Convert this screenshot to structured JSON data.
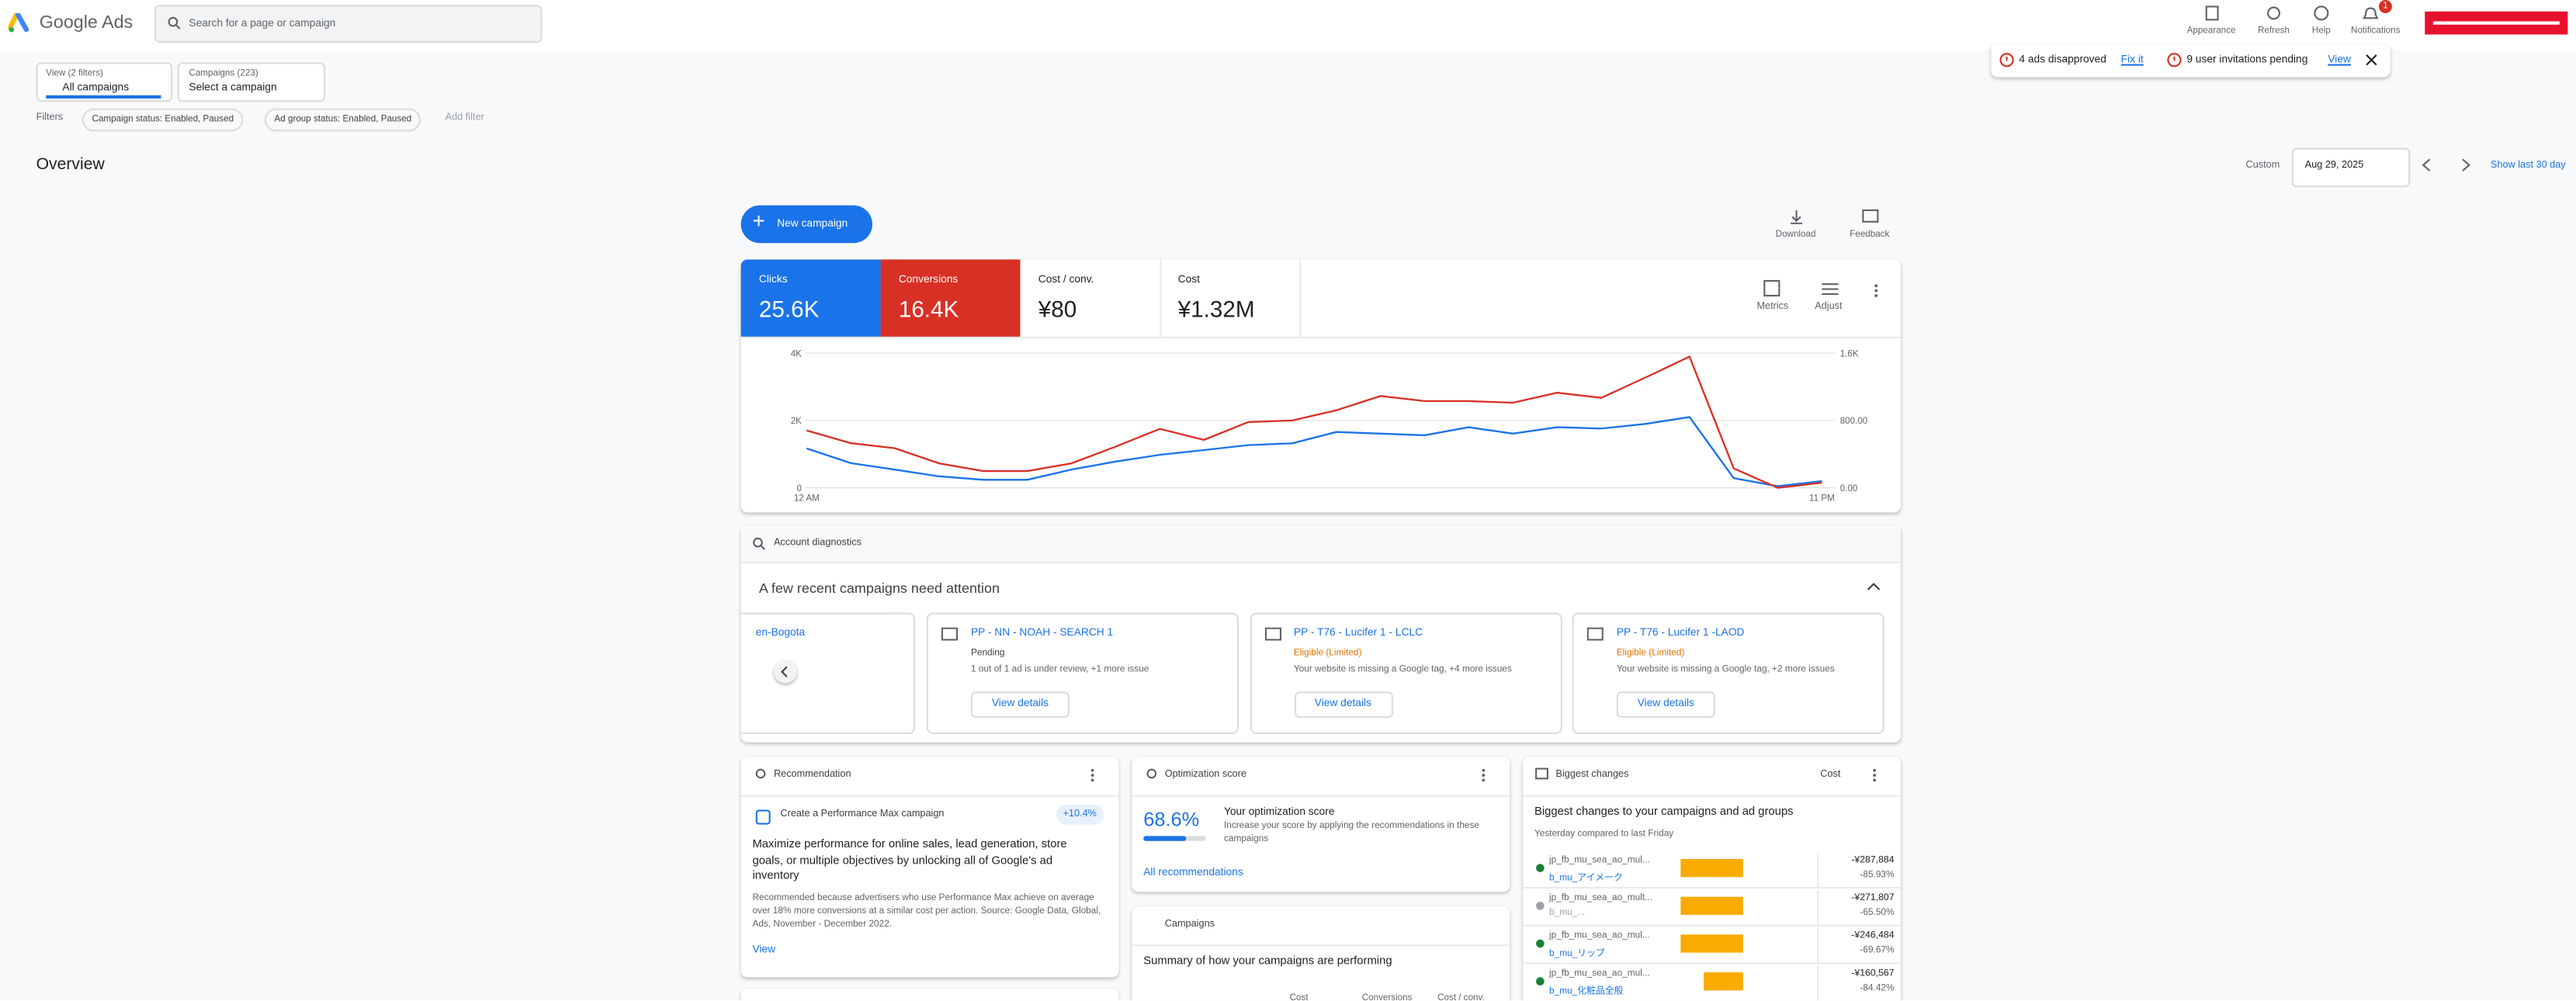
{
  "header": {
    "product": "Google Ads",
    "search_placeholder": "Search for a page or campaign",
    "actions": [
      "Appearance",
      "Refresh",
      "Help",
      "Notifications"
    ],
    "notification_count": "1"
  },
  "alerts": [
    {
      "text": "4 ads disapproved",
      "action": "Fix it"
    },
    {
      "text": "9 user invitations pending",
      "action": "View"
    }
  ],
  "selectors": [
    {
      "label": "View (2 filters)",
      "value": "All campaigns"
    },
    {
      "label": "Campaigns (223)",
      "value": "Select a campaign"
    }
  ],
  "filters": {
    "label": "Filters",
    "chips": [
      "Campaign status: Enabled, Paused",
      "Ad group status: Enabled, Paused"
    ],
    "add": "Add filter"
  },
  "overview": {
    "title": "Overview",
    "range_label": "Custom",
    "date": "Aug 29, 2025",
    "show_last": "Show last 30 day",
    "new_campaign": "New campaign",
    "download": "Download",
    "feedback": "Feedback",
    "metrics_button": "Metrics",
    "adjust_button": "Adjust"
  },
  "metrics": [
    {
      "label": "Cost / conv.",
      "value": "¥80"
    },
    {
      "label": "Cost",
      "value": "¥1.32M"
    }
  ],
  "chart_data": {
    "type": "line",
    "categories": [
      "12 AM",
      null,
      null,
      null,
      null,
      null,
      null,
      null,
      null,
      null,
      null,
      null,
      null,
      null,
      null,
      null,
      null,
      null,
      null,
      null,
      null,
      null,
      null,
      "11 PM"
    ],
    "series": [
      {
        "name": "Clicks",
        "total": "25.6K",
        "color": "#1a73e8",
        "values": [
          1170,
          730,
          540,
          340,
          240,
          240,
          540,
          780,
          980,
          1120,
          1270,
          1320,
          1660,
          1610,
          1560,
          1800,
          1610,
          1800,
          1760,
          1900,
          2100,
          290,
          50,
          200
        ]
      },
      {
        "name": "Conversions",
        "total": "16.4K",
        "color": "#d93025",
        "axis": "y2",
        "values": [
          680,
          530,
          470,
          290,
          200,
          200,
          290,
          490,
          700,
          570,
          780,
          800,
          920,
          1090,
          1030,
          1030,
          1010,
          1130,
          1070,
          1310,
          1560,
          230,
          0,
          60
        ]
      }
    ],
    "ylim": [
      0,
      4000
    ],
    "yticks": [
      0,
      {
        "value": 2000,
        "label": "2K"
      },
      {
        "value": 4000,
        "label": "4K"
      }
    ],
    "y2lim": [
      0,
      1600
    ],
    "y2ticks": [
      {
        "value": 0,
        "label": "0.00"
      },
      {
        "value": 800,
        "label": "800.00"
      },
      {
        "value": 1600,
        "label": "1.6K"
      }
    ],
    "grid": true
  },
  "diagnostics": {
    "title": "Account diagnostics",
    "heading": "A few recent campaigns need attention",
    "partial_card": "en-Bogota",
    "button": "View details",
    "cards": [
      {
        "name": "PP - NN - NOAH - SEARCH 1",
        "status": "Pending",
        "detail": "1 out of 1 ad is under review, +1 more issue"
      },
      {
        "name": "PP - T76 - Lucifer 1 - LCLC",
        "status": "Eligible (Limited)",
        "detail": "Your website is missing a Google tag, +4 more issues"
      },
      {
        "name": "PP - T76 - Lucifer 1 -LAOD",
        "status": "Eligible (Limited)",
        "detail": "Your website is missing a Google tag, +2 more issues"
      }
    ]
  },
  "recommendation": {
    "title": "Recommendation",
    "item": "Create a Performance Max campaign",
    "uplift": "+10.4%",
    "heading": "Maximize performance for online sales, lead generation, store goals, or multiple objectives by unlocking all of Google's ad inventory",
    "body": "Recommended because advertisers who use Performance Max achieve on average over 18% more conversions at a similar cost per action. Source: Google Data, Global, Ads, November - December 2022.",
    "link": "View"
  },
  "optimization": {
    "title": "Optimization score",
    "score": "68.6%",
    "heading": "Your optimization score",
    "body": "Increase your score by applying the recommendations in these campaigns",
    "link": "All recommendations"
  },
  "campaigns": {
    "title": "Campaigns",
    "heading": "Summary of how your campaigns are performing",
    "columns": [
      "Cost",
      "Conversions",
      "Cost / conv."
    ]
  },
  "biggest_changes": {
    "title": "Biggest changes",
    "metric": "Cost",
    "heading": "Biggest changes to your campaigns and ad groups",
    "subtitle": "Yesterday compared to last Friday",
    "rows": [
      {
        "campaign": "jp_fb_mu_sea_ao_mul...",
        "ad_group": "b_mu_アイメーク",
        "change": "-¥287,884",
        "percent": "-85.93%"
      },
      {
        "campaign": "jp_fb_mu_sea_ao_mult...",
        "ad_group": "b_mu_...",
        "change": "-¥271,807",
        "percent": "-65.50%"
      },
      {
        "campaign": "jp_fb_mu_sea_ao_mul...",
        "ad_group": "b_mu_リップ",
        "change": "-¥246,484",
        "percent": "-69.67%"
      },
      {
        "campaign": "jp_fb_mu_sea_ao_mul...",
        "ad_group": "b_mu_化粧品全般",
        "change": "-¥160,567",
        "percent": "-84.42%"
      }
    ]
  }
}
